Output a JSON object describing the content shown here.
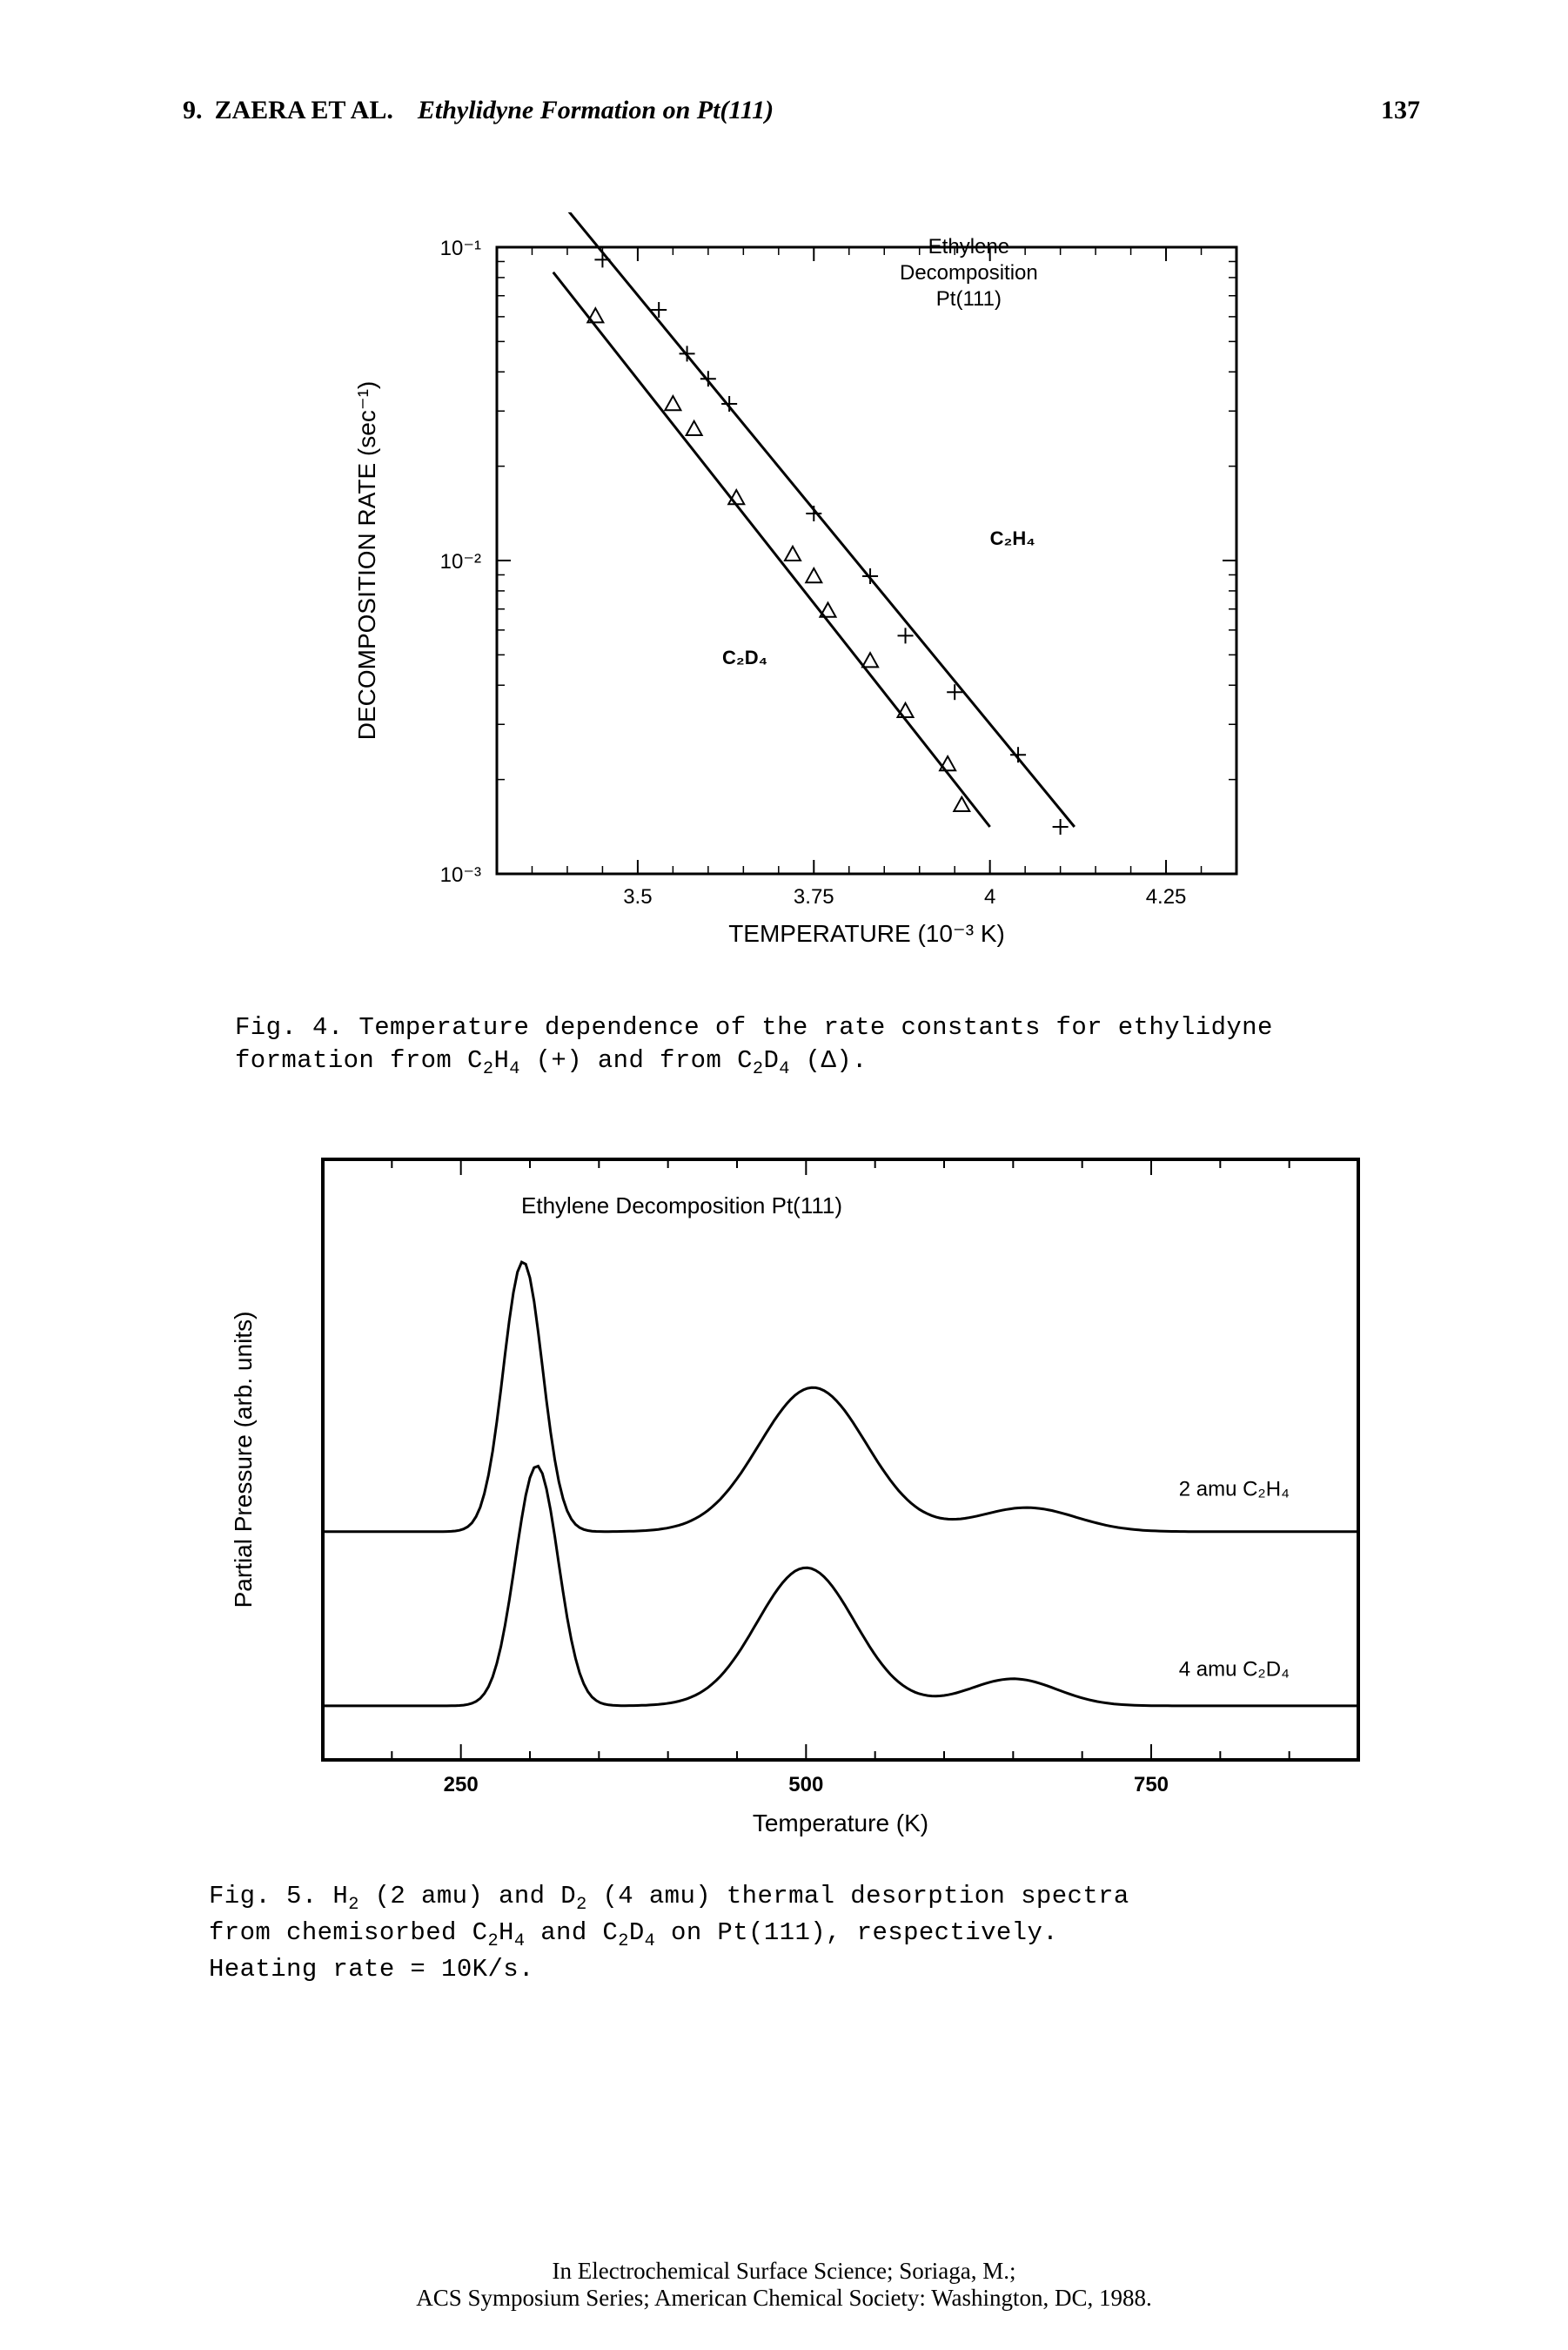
{
  "header": {
    "chapter_number": "9.",
    "authors": "ZAERA ET AL.",
    "title": "Ethylidyne Formation on Pt(111)",
    "page_number": "137"
  },
  "fig4": {
    "type": "scatter-loglinear",
    "title_lines": [
      "Ethylene",
      "Decomposition",
      "Pt(111)"
    ],
    "ylabel": "DECOMPOSITION RATE (sec⁻¹)",
    "xlabel": "TEMPERATURE (10⁻³ K)",
    "ylim_log10": [
      -3,
      -1
    ],
    "xlim": [
      3.3,
      4.35
    ],
    "xtick_labels": [
      "3.5",
      "3.75",
      "4",
      "4.25"
    ],
    "xtick_vals": [
      3.5,
      3.75,
      4.0,
      4.25
    ],
    "ytick_log10": [
      -3,
      -2,
      -1
    ],
    "ytick_labels": [
      "10⁻³",
      "10⁻²",
      "10⁻¹"
    ],
    "series_label_c2h4": "C₂H₄",
    "series_label_c2d4": "C₂D₄",
    "line_color": "#000000",
    "line_width": 2,
    "tick_fontsize": 24,
    "label_fontsize": 26,
    "c2h4_line": {
      "x1": 3.4,
      "y1_log10": -0.88,
      "x2": 4.12,
      "y2_log10": -2.85
    },
    "c2d4_line": {
      "x1": 3.38,
      "y1_log10": -1.08,
      "x2": 4.0,
      "y2_log10": -2.85
    },
    "c2h4_points": [
      {
        "x": 3.45,
        "y": -1.04
      },
      {
        "x": 3.53,
        "y": -1.2
      },
      {
        "x": 3.57,
        "y": -1.34
      },
      {
        "x": 3.6,
        "y": -1.42
      },
      {
        "x": 3.63,
        "y": -1.5
      },
      {
        "x": 3.75,
        "y": -1.85
      },
      {
        "x": 3.83,
        "y": -2.05
      },
      {
        "x": 3.88,
        "y": -2.24
      },
      {
        "x": 3.95,
        "y": -2.42
      },
      {
        "x": 4.04,
        "y": -2.62
      },
      {
        "x": 4.1,
        "y": -2.85
      }
    ],
    "c2d4_points": [
      {
        "x": 3.44,
        "y": -1.22
      },
      {
        "x": 3.55,
        "y": -1.5
      },
      {
        "x": 3.58,
        "y": -1.58
      },
      {
        "x": 3.64,
        "y": -1.8
      },
      {
        "x": 3.72,
        "y": -1.98
      },
      {
        "x": 3.75,
        "y": -2.05
      },
      {
        "x": 3.77,
        "y": -2.16
      },
      {
        "x": 3.83,
        "y": -2.32
      },
      {
        "x": 3.88,
        "y": -2.48
      },
      {
        "x": 3.94,
        "y": -2.65
      },
      {
        "x": 3.96,
        "y": -2.78
      }
    ],
    "caption_prefix": "Fig. 4.  Temperature dependence of the rate constants for ethylidyne formation from C",
    "caption_mid": " (+) and from C",
    "caption_suffix": " (Δ)."
  },
  "fig5": {
    "type": "line-spectra",
    "title": "Ethylene Decomposition  Pt(111)",
    "ylabel": "Partial Pressure (arb. units)",
    "xlabel": "Temperature (K)",
    "xlim": [
      150,
      900
    ],
    "xtick_vals": [
      250,
      500,
      750
    ],
    "xtick_labels": [
      "250",
      "500",
      "750"
    ],
    "line_color": "#000000",
    "line_width": 3,
    "border_width": 4,
    "label_fontsize": 28,
    "tick_fontsize": 24,
    "trace_labels": {
      "top": "2 amu   C₂H₄",
      "bottom": "4 amu   C₂D₄"
    },
    "caption_line1a": "Fig. 5.  H",
    "caption_line1b": " (2 amu) and D",
    "caption_line1c": " (4 amu) thermal desorption spectra",
    "caption_line2a": "from chemisorbed C",
    "caption_line2b": " and C",
    "caption_line2c": " on Pt(111), respectively.",
    "caption_line3": "Heating rate = 10K/s."
  },
  "footer": {
    "line1": "In Electrochemical Surface Science; Soriaga, M.;",
    "line2": "ACS Symposium Series; American Chemical Society: Washington, DC, 1988."
  }
}
